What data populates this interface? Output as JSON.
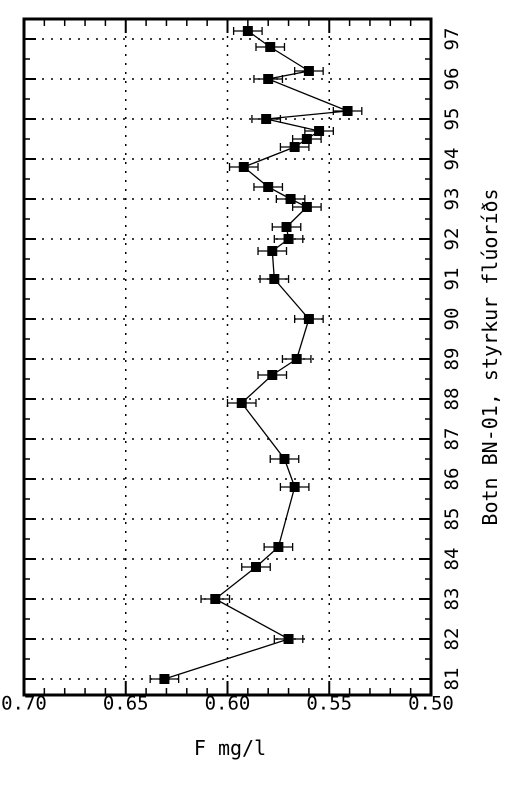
{
  "chart_data": {
    "type": "line",
    "orientation": "rotated-90",
    "title": "Botn BN-01, styrkur flúoríðs",
    "xlabel": "",
    "ylabel": "F mg/l",
    "ylim": [
      0.5,
      0.7
    ],
    "yticks": [
      "0.50",
      "0.55",
      "0.60",
      "0.65",
      "0.70"
    ],
    "xlim": [
      80.6,
      97.5
    ],
    "xticks": [
      "81",
      "82",
      "83",
      "84",
      "85",
      "86",
      "87",
      "88",
      "89",
      "90",
      "91",
      "92",
      "93",
      "94",
      "95",
      "96",
      "97"
    ],
    "grid": true,
    "series": [
      {
        "name": "",
        "color": "#000000",
        "marker": "square",
        "error": 0.007,
        "points": [
          {
            "x": 81.0,
            "y": 0.631
          },
          {
            "x": 82.0,
            "y": 0.57
          },
          {
            "x": 83.0,
            "y": 0.606
          },
          {
            "x": 83.8,
            "y": 0.586
          },
          {
            "x": 84.3,
            "y": 0.575
          },
          {
            "x": 85.8,
            "y": 0.567
          },
          {
            "x": 86.5,
            "y": 0.572
          },
          {
            "x": 87.9,
            "y": 0.593
          },
          {
            "x": 88.6,
            "y": 0.578
          },
          {
            "x": 89.0,
            "y": 0.566
          },
          {
            "x": 90.0,
            "y": 0.56
          },
          {
            "x": 91.0,
            "y": 0.577
          },
          {
            "x": 91.7,
            "y": 0.578
          },
          {
            "x": 92.0,
            "y": 0.57
          },
          {
            "x": 92.3,
            "y": 0.571
          },
          {
            "x": 92.8,
            "y": 0.561
          },
          {
            "x": 93.0,
            "y": 0.569
          },
          {
            "x": 93.3,
            "y": 0.58
          },
          {
            "x": 93.8,
            "y": 0.592
          },
          {
            "x": 94.3,
            "y": 0.567
          },
          {
            "x": 94.5,
            "y": 0.561
          },
          {
            "x": 94.7,
            "y": 0.555
          },
          {
            "x": 95.0,
            "y": 0.581
          },
          {
            "x": 95.2,
            "y": 0.541
          },
          {
            "x": 96.0,
            "y": 0.58
          },
          {
            "x": 96.2,
            "y": 0.56
          },
          {
            "x": 96.8,
            "y": 0.579
          },
          {
            "x": 97.2,
            "y": 0.59
          }
        ]
      }
    ]
  }
}
